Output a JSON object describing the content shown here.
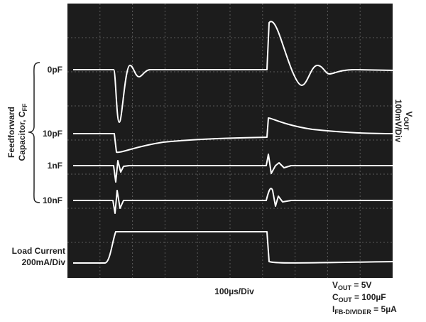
{
  "traces": [
    "0pF",
    "10pF",
    "1nF",
    "10nF"
  ],
  "left_axis": {
    "line1": "Feedforward",
    "line2": "Capacitor, C",
    "line2_sub": "FF"
  },
  "right_axis": {
    "main": "V",
    "sub": "OUT",
    "line2": "100mV/Div"
  },
  "load_current": [
    "Load Current",
    "200mA/Div"
  ],
  "x_axis": "100µs/Div",
  "conditions": [
    {
      "main": "V",
      "sub": "OUT",
      "rest": " = 5V"
    },
    {
      "main": "C",
      "sub": "OUT",
      "rest": " = 100µF"
    },
    {
      "main": "I",
      "sub": "FB-DIVIDER",
      "rest": " = 5µA"
    }
  ]
}
